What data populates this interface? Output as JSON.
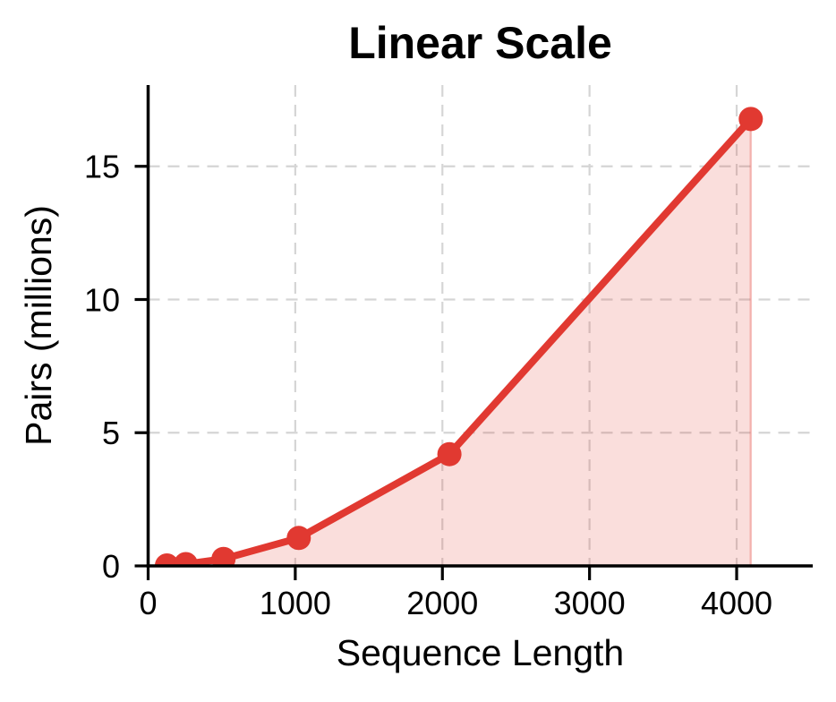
{
  "figure": {
    "background_color": "#ffffff"
  },
  "chart_data": {
    "type": "area",
    "title": "Linear Scale",
    "xlabel": "Sequence Length",
    "ylabel": "Pairs (millions)",
    "x": [
      128,
      256,
      512,
      1024,
      2048,
      4096
    ],
    "series": [
      {
        "name": "Pairs (millions)",
        "values": [
          0.016,
          0.066,
          0.262,
          1.049,
          4.194,
          16.777
        ]
      }
    ],
    "xticks": [
      0,
      1000,
      2000,
      3000,
      4000
    ],
    "yticks": [
      0,
      5,
      10,
      15
    ],
    "xlim": [
      0,
      4517
    ],
    "ylim": [
      0,
      18.05
    ],
    "grid": true,
    "grid_style": "dashed",
    "legend_position": "none",
    "marker": "circle",
    "colors": {
      "line": "#e13931",
      "fill": "#e13931",
      "grid": "#d5d5d5",
      "axis": "#000000",
      "text": "#000000"
    },
    "fill_opacity": 0.17
  }
}
